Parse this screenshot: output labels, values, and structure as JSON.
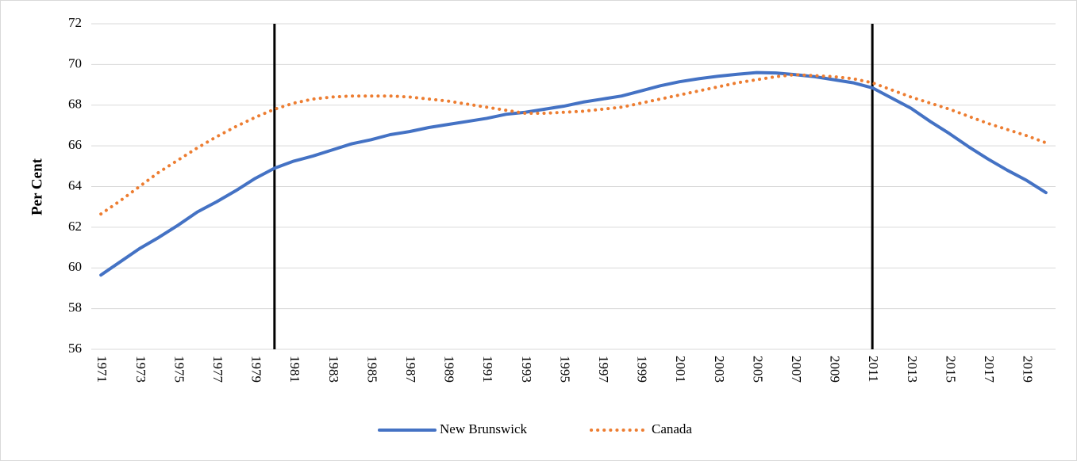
{
  "chart_data": {
    "type": "line",
    "y_label": "Per Cent",
    "x": [
      1971,
      1972,
      1973,
      1974,
      1975,
      1976,
      1977,
      1978,
      1979,
      1980,
      1981,
      1982,
      1983,
      1984,
      1985,
      1986,
      1987,
      1988,
      1989,
      1990,
      1991,
      1992,
      1993,
      1994,
      1995,
      1996,
      1997,
      1998,
      1999,
      2000,
      2001,
      2002,
      2003,
      2004,
      2005,
      2006,
      2007,
      2008,
      2009,
      2010,
      2011,
      2012,
      2013,
      2014,
      2015,
      2016,
      2017,
      2018,
      2019,
      2020
    ],
    "series": [
      {
        "name": "New Brunswick",
        "color": "#4472c4",
        "style": "solid",
        "values": [
          59.65,
          60.3,
          60.95,
          61.5,
          62.1,
          62.75,
          63.25,
          63.8,
          64.4,
          64.9,
          65.25,
          65.5,
          65.8,
          66.1,
          66.3,
          66.55,
          66.7,
          66.9,
          67.05,
          67.2,
          67.35,
          67.55,
          67.65,
          67.8,
          67.95,
          68.15,
          68.3,
          68.45,
          68.7,
          68.95,
          69.15,
          69.3,
          69.42,
          69.52,
          69.6,
          69.58,
          69.5,
          69.4,
          69.25,
          69.1,
          68.85,
          68.35,
          67.85,
          67.2,
          66.6,
          65.95,
          65.35,
          64.8,
          64.3,
          63.7
        ]
      },
      {
        "name": "Canada",
        "color": "#ed7d31",
        "style": "dotted",
        "values": [
          62.65,
          63.3,
          64.0,
          64.7,
          65.3,
          65.9,
          66.45,
          66.95,
          67.4,
          67.8,
          68.1,
          68.3,
          68.4,
          68.45,
          68.45,
          68.45,
          68.4,
          68.3,
          68.2,
          68.05,
          67.9,
          67.75,
          67.6,
          67.6,
          67.65,
          67.7,
          67.8,
          67.9,
          68.1,
          68.3,
          68.5,
          68.7,
          68.9,
          69.1,
          69.25,
          69.4,
          69.5,
          69.45,
          69.4,
          69.3,
          69.1,
          68.75,
          68.4,
          68.1,
          67.8,
          67.45,
          67.1,
          66.8,
          66.5,
          66.15
        ]
      }
    ],
    "xlim": [
      1970.5,
      2020.5
    ],
    "xticks": [
      1971,
      1973,
      1975,
      1977,
      1979,
      1981,
      1983,
      1985,
      1987,
      1989,
      1991,
      1993,
      1995,
      1997,
      1999,
      2001,
      2003,
      2005,
      2007,
      2009,
      2011,
      2013,
      2015,
      2017,
      2019
    ],
    "ylim": [
      56,
      72
    ],
    "yticks": [
      56,
      58,
      60,
      62,
      64,
      66,
      68,
      70,
      72
    ],
    "grid": true,
    "vertical_lines": [
      1980,
      2011
    ],
    "legend": "bottom"
  }
}
